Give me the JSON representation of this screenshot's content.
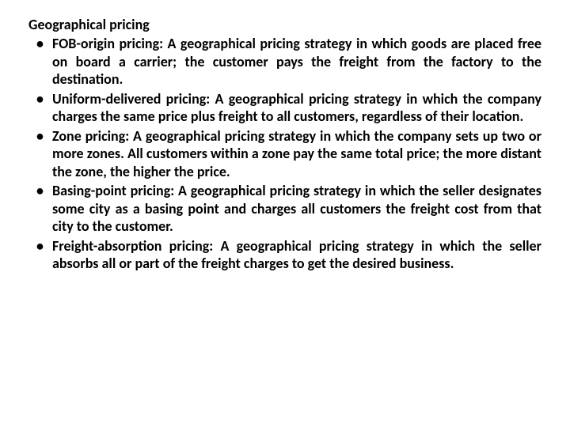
{
  "heading": "Geographical pricing",
  "items": [
    "FOB-origin pricing: A geographical pricing strategy in which goods are placed free on board a carrier; the customer pays the freight from the factory to the destination.",
    "Uniform-delivered pricing: A geographical pricing strategy in which the company charges the same price plus freight to all customers, regardless of their location.",
    "Zone pricing: A geographical pricing strategy in which the company sets up two or more zones. All customers within a zone pay the same total price; the more distant the zone, the higher the price.",
    "Basing-point pricing: A geographical pricing strategy in which the seller designates some city as a basing point and charges all customers the freight cost from that city to the customer.",
    "Freight-absorption pricing: A geographical pricing strategy in which the seller absorbs all or part of the freight charges to get the desired business."
  ],
  "colors": {
    "background": "#ffffff",
    "text": "#000000"
  },
  "typography": {
    "font_family": "Calibri",
    "heading_fontsize": 18,
    "body_fontsize": 18,
    "weight": "bold",
    "alignment": "justify",
    "line_height": 1.25
  }
}
